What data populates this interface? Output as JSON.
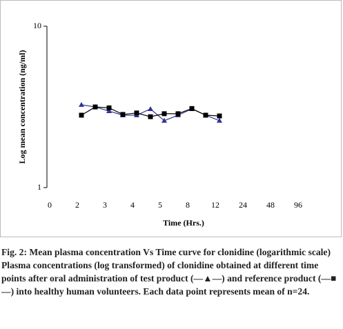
{
  "chart_data": {
    "type": "line",
    "log_y": true,
    "ylabel": "Log mean concentration (ng/ml)",
    "xlabel": "Time (Hrs.)",
    "ylim": [
      1,
      10
    ],
    "yticks": [
      1,
      10
    ],
    "xlim": [
      -0.1,
      9.6
    ],
    "xticks": [
      {
        "value": 0,
        "label": "0"
      },
      {
        "value": 1,
        "label": "2"
      },
      {
        "value": 2,
        "label": "3"
      },
      {
        "value": 3,
        "label": "4"
      },
      {
        "value": 4,
        "label": "5"
      },
      {
        "value": 5,
        "label": "8"
      },
      {
        "value": 6,
        "label": "12"
      },
      {
        "value": 7,
        "label": "24"
      },
      {
        "value": 8,
        "label": "48"
      },
      {
        "value": 9,
        "label": "96"
      }
    ],
    "x": [
      1.15,
      1.65,
      2.15,
      2.65,
      3.15,
      3.65,
      4.15,
      4.65,
      5.15,
      5.65,
      6.15
    ],
    "series": [
      {
        "color": "#333399",
        "marker": "triangle",
        "values": [
          3.26,
          3.16,
          2.98,
          2.81,
          2.81,
          3.07,
          2.6,
          2.81,
          3.07,
          2.81,
          2.6
        ]
      },
      {
        "color": "#000000",
        "marker": "square",
        "values": [
          2.81,
          3.16,
          3.12,
          2.84,
          2.9,
          2.75,
          2.87,
          2.87,
          3.09,
          2.81,
          2.78
        ]
      }
    ]
  },
  "caption": {
    "title": "Fig. 2: Mean plasma concentration Vs Time curve for clonidine (logarithmic scale)",
    "text": "Plasma concentrations (log transformed) of clonidine obtained at different time points after oral administration of test product (—▲—) and reference product (—■—) into healthy human volunteers. Each data point represents mean of n=24."
  }
}
